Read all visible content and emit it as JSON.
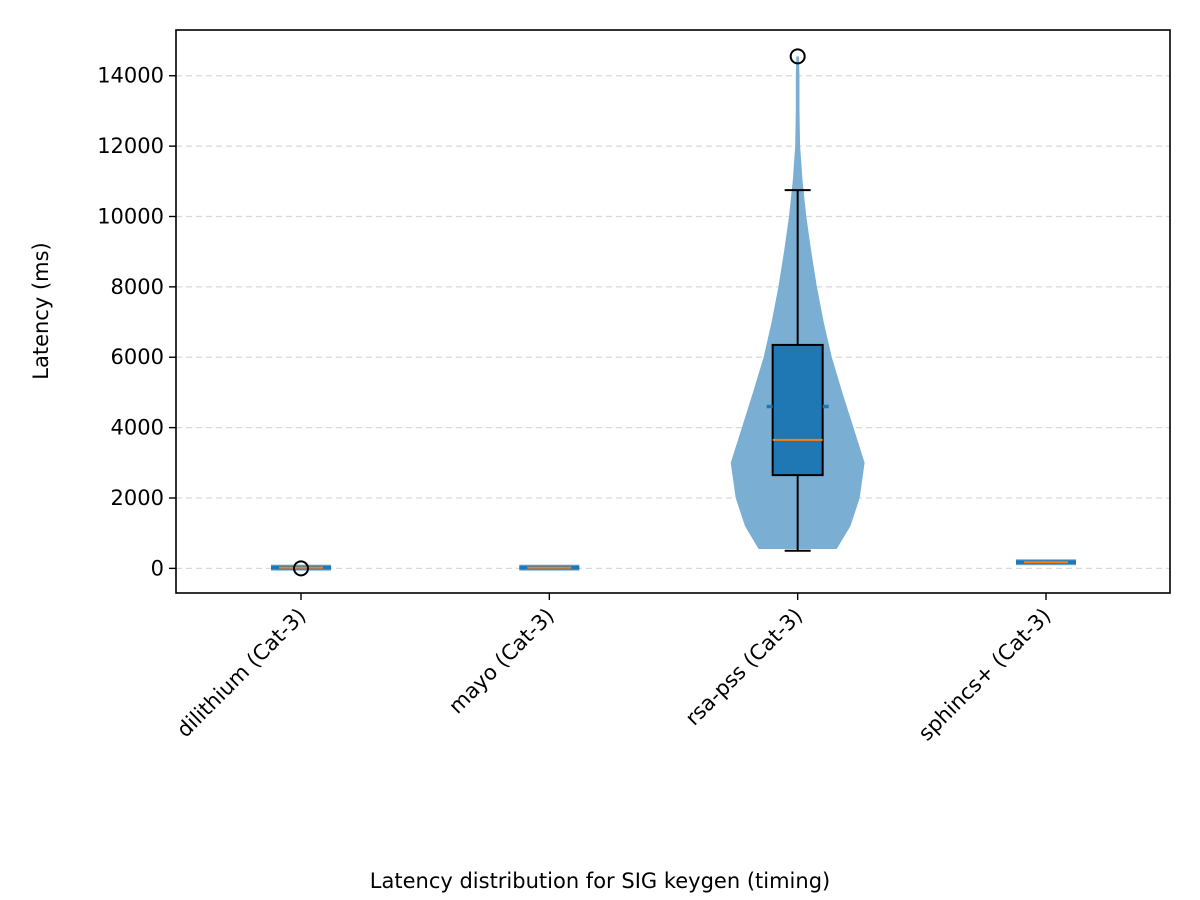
{
  "chart_data": {
    "type": "violin+box",
    "title": "",
    "xlabel": "Latency distribution for SIG keygen (timing)",
    "ylabel": "Latency (ms)",
    "ylim": [
      -700,
      15300
    ],
    "yticks": [
      0,
      2000,
      4000,
      6000,
      8000,
      10000,
      12000,
      14000
    ],
    "grid": "y-dashed",
    "categories": [
      "dilithium (Cat-3)",
      "mayo (Cat-3)",
      "rsa-pss (Cat-3)",
      "sphincs+ (Cat-3)"
    ],
    "series": [
      {
        "category": "dilithium (Cat-3)",
        "box": {
          "q1": 10,
          "median": 20,
          "q3": 40,
          "whisker_low": 5,
          "whisker_high": 60
        },
        "mean": 25,
        "outliers": [
          0
        ],
        "violin": [
          [
            5,
            1
          ],
          [
            60,
            1
          ]
        ]
      },
      {
        "category": "mayo (Cat-3)",
        "box": {
          "q1": 10,
          "median": 20,
          "q3": 35,
          "whisker_low": 5,
          "whisker_high": 50
        },
        "mean": 22,
        "outliers": [],
        "violin": [
          [
            5,
            1
          ],
          [
            50,
            1
          ]
        ]
      },
      {
        "category": "rsa-pss (Cat-3)",
        "box": {
          "q1": 2650,
          "median": 3650,
          "q3": 6350,
          "whisker_low": 500,
          "whisker_high": 10750
        },
        "mean": 4600,
        "outliers": [
          14550
        ],
        "violin": [
          [
            550,
            0.63
          ],
          [
            1200,
            0.85
          ],
          [
            2000,
            1.0
          ],
          [
            3000,
            1.08
          ],
          [
            4000,
            0.9
          ],
          [
            5000,
            0.72
          ],
          [
            6000,
            0.55
          ],
          [
            7000,
            0.42
          ],
          [
            8000,
            0.31
          ],
          [
            9000,
            0.22
          ],
          [
            10000,
            0.14
          ],
          [
            11000,
            0.08
          ],
          [
            12000,
            0.04
          ],
          [
            13000,
            0.03
          ],
          [
            14000,
            0.03
          ],
          [
            14550,
            0.02
          ]
        ]
      },
      {
        "category": "sphincs+ (Cat-3)",
        "box": {
          "q1": 150,
          "median": 175,
          "q3": 200,
          "whisker_low": 130,
          "whisker_high": 220
        },
        "mean": 175,
        "outliers": [],
        "violin": [
          [
            130,
            1
          ],
          [
            220,
            1
          ]
        ]
      }
    ],
    "colors": {
      "violin": "#7aafd3",
      "box": "#1f77b4",
      "median": "#ff7f0e",
      "edge": "#000000",
      "grid": "#d9d9d9"
    }
  }
}
